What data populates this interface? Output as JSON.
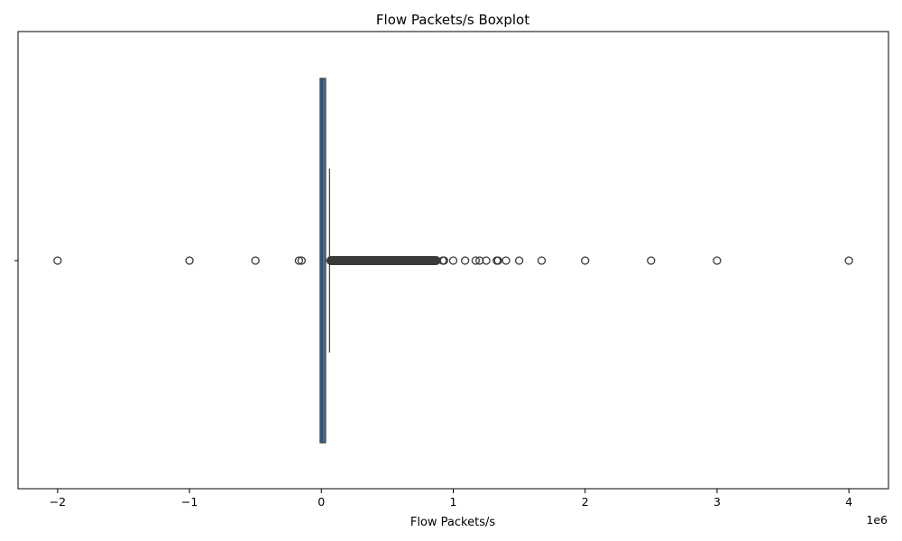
{
  "chart_data": {
    "type": "boxplot",
    "orientation": "horizontal",
    "title": "Flow Packets/s Boxplot",
    "xlabel": "Flow Packets/s",
    "ylabel": "",
    "x_offset_label": "1e6",
    "xlim": [
      -2300000,
      4300000
    ],
    "xticks": [
      -2000000,
      -1000000,
      0,
      1000000,
      2000000,
      3000000,
      4000000
    ],
    "xtick_labels": [
      "−2",
      "−1",
      "0",
      "1",
      "2",
      "3",
      "4"
    ],
    "y_tick_label": "",
    "grid": false,
    "box": {
      "q1": 1000,
      "median": 5000,
      "q3": 25000,
      "whisker_low": -2000,
      "whisker_high": 62000,
      "color": "#3a75a8"
    },
    "outliers_dense_range": [
      62000,
      880000
    ],
    "outliers": [
      -2000000,
      -1000000,
      -500000,
      -170000,
      -150000,
      920000,
      930000,
      1000000,
      1090000,
      1170000,
      1200000,
      1250000,
      1330000,
      1340000,
      1400000,
      1500000,
      1670000,
      2000000,
      2500000,
      3000000,
      4000000
    ]
  }
}
